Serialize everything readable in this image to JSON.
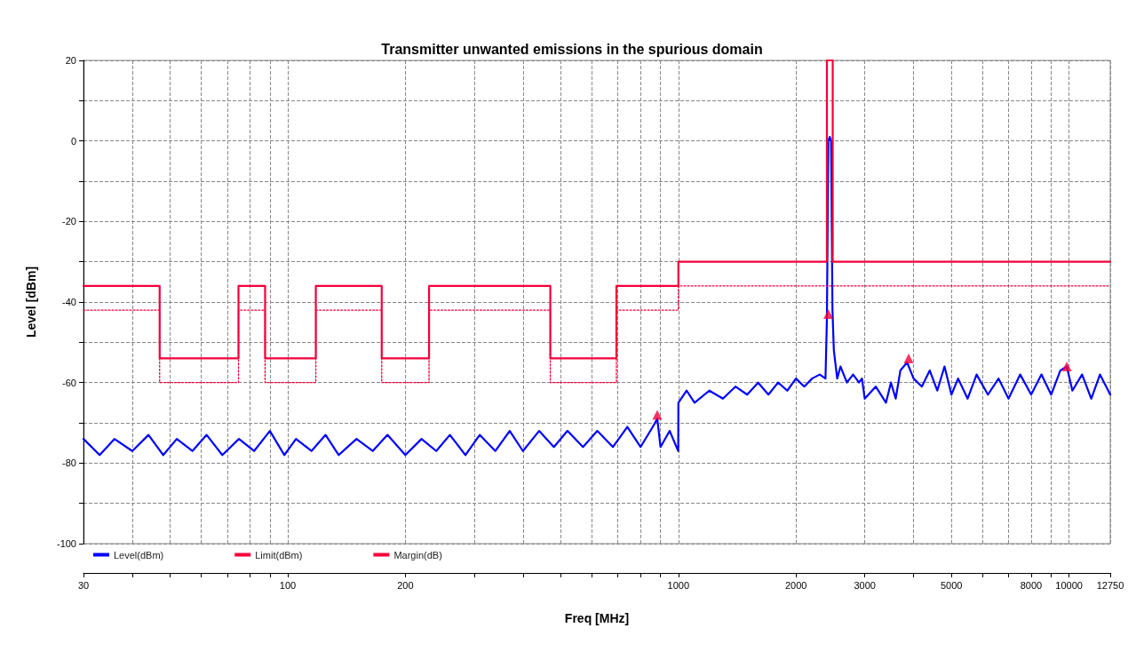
{
  "chart_data": {
    "type": "line",
    "title": "Transmitter unwanted emissions in the spurious domain",
    "xlabel": "Freq [MHz]",
    "ylabel": "Level [dBm]",
    "log": "x",
    "grid": true,
    "legend": "bottom left",
    "xlim": [
      30,
      12750
    ],
    "ylim": [
      -100,
      20
    ],
    "xticks": [
      30,
      {
        "value": 40,
        "label": null
      },
      {
        "value": 50,
        "label": null
      },
      {
        "value": 60,
        "label": null
      },
      {
        "value": 70,
        "label": null
      },
      {
        "value": 80,
        "label": null
      },
      {
        "value": 90,
        "label": null
      },
      100,
      200,
      {
        "value": 300,
        "label": null
      },
      {
        "value": 400,
        "label": null
      },
      {
        "value": 500,
        "label": null
      },
      {
        "value": 600,
        "label": null
      },
      {
        "value": 700,
        "label": null
      },
      {
        "value": 800,
        "label": null
      },
      {
        "value": 900,
        "label": null
      },
      1000,
      2000,
      3000,
      {
        "value": 4000,
        "label": null
      },
      5000,
      {
        "value": 6000,
        "label": null
      },
      {
        "value": 7000,
        "label": null
      },
      8000,
      {
        "value": 9000,
        "label": null
      },
      10000,
      12750
    ],
    "yticks": [
      -100,
      {
        "value": -90,
        "label": null
      },
      -80,
      {
        "value": -70,
        "label": null
      },
      -60,
      {
        "value": -50,
        "label": null
      },
      -40,
      {
        "value": -30,
        "label": null
      },
      -20,
      {
        "value": -10,
        "label": null
      },
      0,
      {
        "value": 10,
        "label": null
      },
      20
    ],
    "series": [
      {
        "name": "Level(dBm)",
        "color": "#0000ff",
        "marker": "none",
        "line_style": "solid",
        "x": [
          30,
          33,
          36,
          40,
          44,
          48,
          52,
          57,
          62,
          68,
          75,
          82,
          90,
          98,
          105,
          115,
          125,
          135,
          150,
          165,
          180,
          200,
          220,
          240,
          260,
          285,
          310,
          340,
          370,
          400,
          440,
          480,
          520,
          570,
          620,
          680,
          740,
          800,
          860,
          883,
          900,
          950,
          999,
          1000,
          1050,
          1100,
          1200,
          1300,
          1400,
          1500,
          1600,
          1700,
          1800,
          1900,
          2000,
          2100,
          2200,
          2300,
          2380,
          2400,
          2420,
          2440,
          2460,
          2480,
          2500,
          2550,
          2600,
          2700,
          2800,
          2900,
          2950,
          3000,
          3200,
          3400,
          3500,
          3600,
          3700,
          3850,
          4000,
          4200,
          4400,
          4600,
          4800,
          5000,
          5200,
          5500,
          5800,
          6200,
          6600,
          7000,
          7500,
          8000,
          8500,
          9000,
          9500,
          9867,
          10200,
          10800,
          11400,
          12000,
          12750
        ],
        "values": [
          -74,
          -78,
          -74,
          -77,
          -73,
          -78,
          -74,
          -77,
          -73,
          -78,
          -74,
          -77,
          -72,
          -78,
          -74,
          -77,
          -73,
          -78,
          -74,
          -77,
          -73,
          -78,
          -74,
          -77,
          -73,
          -78,
          -73,
          -77,
          -72,
          -77,
          -72,
          -76,
          -72,
          -76,
          -72,
          -76,
          -71,
          -76,
          -71,
          -69,
          -76,
          -72,
          -77,
          -65,
          -62,
          -65,
          -62,
          -64,
          -61,
          -63,
          -60,
          -63,
          -60,
          -62,
          -59,
          -61,
          -59,
          -58,
          -59,
          -44,
          0,
          1,
          0,
          -42,
          -52,
          -59,
          -56,
          -60,
          -58,
          -60,
          -59,
          -64,
          -61,
          -65,
          -60,
          -64,
          -57,
          -55,
          -59,
          -61,
          -57,
          -62,
          -56,
          -63,
          -59,
          -64,
          -58,
          -63,
          -59,
          -64,
          -58,
          -63,
          -58,
          -63,
          -57,
          -56,
          -62,
          -58,
          -64,
          -58,
          -63
        ]
      },
      {
        "name": "Limit(dBm)",
        "type": "step",
        "color": "#f5003a",
        "marker": "none",
        "line_style": "solid",
        "x": [
          30,
          47,
          74.8,
          87.5,
          118,
          174,
          230,
          470,
          694,
          1000,
          2400,
          2483.5,
          12750
        ],
        "values": [
          -36,
          -54,
          -36,
          -54,
          -36,
          -54,
          -36,
          -54,
          -36,
          -30,
          20,
          -30,
          -30
        ]
      },
      {
        "name": "Margin(dB)",
        "type": "step",
        "color": "#f5003a",
        "marker": "none",
        "line_style": "dotted",
        "x": [
          30,
          47,
          74.8,
          87.5,
          118,
          174,
          230,
          470,
          694,
          1000,
          12750
        ],
        "values": [
          -42,
          -60,
          -42,
          -60,
          -42,
          -60,
          -42,
          -60,
          -42,
          -36,
          -36
        ]
      },
      {
        "type": "scatter",
        "color": "#f5003a",
        "marker": "triangle",
        "x": [
          883,
          2420,
          3885,
          9867
        ],
        "values": [
          -68,
          -43,
          -54,
          -56
        ]
      }
    ]
  }
}
